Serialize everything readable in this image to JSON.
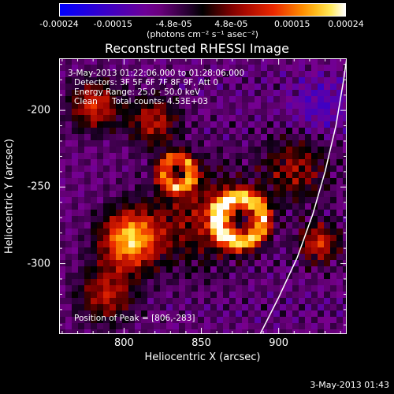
{
  "colorbar": {
    "tick_labels": [
      "-0.00024",
      "-0.00015",
      "-4.8e-05",
      "4.8e-05",
      "0.00015",
      "0.00024"
    ],
    "tick_values": [
      -0.00024,
      -0.00015,
      -4.8e-05,
      4.8e-05,
      0.00015,
      0.00024
    ],
    "range": [
      -0.00024,
      0.00024
    ],
    "units": "(photons cm⁻² s⁻¹ asec⁻²)"
  },
  "chart_data": {
    "type": "heatmap",
    "title": "Reconstructed RHESSI Image",
    "xlabel": "Heliocentric X (arcsec)",
    "ylabel": "Heliocentric Y (arcsec)",
    "xlim": [
      758,
      944
    ],
    "ylim": [
      -346,
      -166
    ],
    "xticks": [
      800,
      850,
      900
    ],
    "yticks": [
      -200,
      -250,
      -300
    ],
    "annotations": [
      "3-May-2013 01:22:06.000 to 01:28:06.000",
      "Detectors: 3F 5F 6F 7F 8F 9F, Att 0",
      "Energy Range: 25.0 - 50.0 keV",
      "Clean",
      "Total counts: 4.53E+03",
      "Position of Peak = [806,-283]"
    ],
    "peak_position": [
      806,
      -283
    ],
    "limb_curve": [
      [
        888,
        -346
      ],
      [
        900,
        -322
      ],
      [
        912,
        -296
      ],
      [
        922,
        -268
      ],
      [
        930,
        -240
      ],
      [
        937,
        -210
      ],
      [
        942,
        -180
      ],
      [
        944,
        -166
      ]
    ]
  },
  "footer": {
    "date": "3-May-2013 01:43"
  },
  "colors": {
    "background": "#000000",
    "axes": "#ffffff",
    "text": "#ffffff"
  }
}
